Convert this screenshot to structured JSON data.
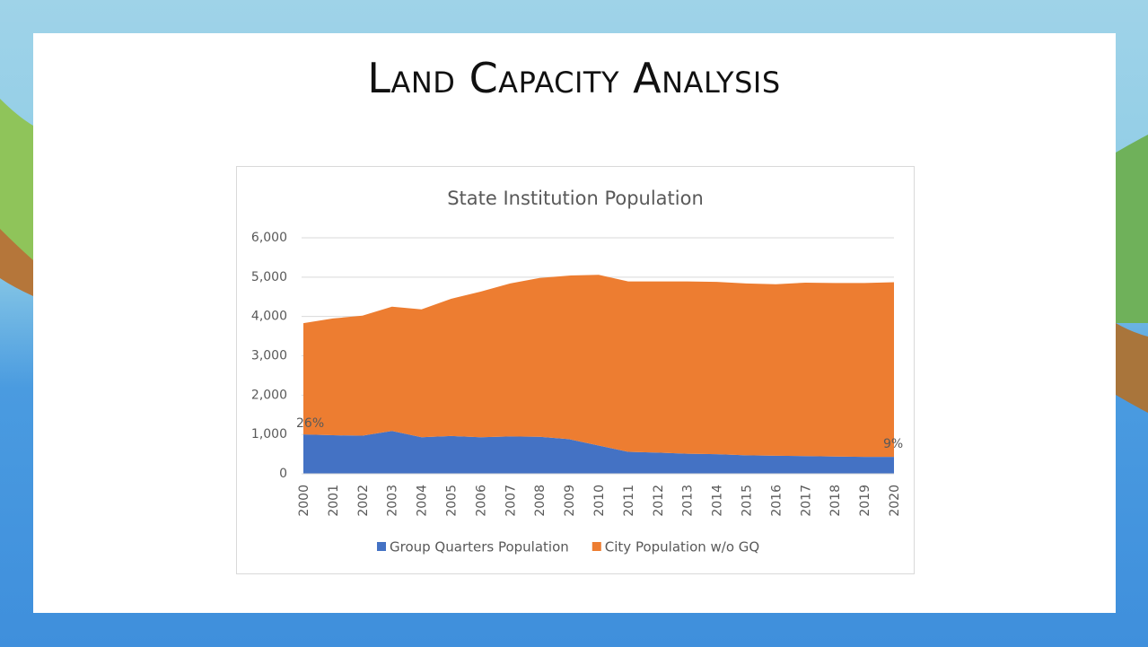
{
  "slide": {
    "title": "Land Capacity Analysis"
  },
  "chart_data": {
    "type": "stacked-area",
    "title": "State Institution Population",
    "categories": [
      "2000",
      "2001",
      "2002",
      "2003",
      "2004",
      "2005",
      "2006",
      "2007",
      "2008",
      "2009",
      "2010",
      "2011",
      "2012",
      "2013",
      "2014",
      "2015",
      "2016",
      "2017",
      "2018",
      "2019",
      "2020"
    ],
    "series": [
      {
        "name": "Group Quarters Population",
        "color": "#4472c4",
        "values": [
          1000,
          980,
          970,
          1090,
          930,
          960,
          930,
          950,
          940,
          880,
          720,
          560,
          540,
          510,
          500,
          470,
          460,
          450,
          440,
          430,
          430
        ]
      },
      {
        "name": "City Population w/o GQ",
        "color": "#ed7d31",
        "values": [
          2830,
          2970,
          3050,
          3160,
          3250,
          3490,
          3700,
          3890,
          4040,
          4160,
          4340,
          4330,
          4350,
          4380,
          4380,
          4370,
          4360,
          4410,
          4410,
          4420,
          4440
        ]
      }
    ],
    "annotations": [
      "26%",
      "9%"
    ],
    "ylim": [
      0,
      6000
    ],
    "yticks": [
      0,
      {
        "value": 1000,
        "label": "1,000"
      },
      {
        "value": 2000,
        "label": "2,000"
      },
      {
        "value": 3000,
        "label": "3,000"
      },
      {
        "value": 4000,
        "label": "4,000"
      },
      {
        "value": 5000,
        "label": "5,000"
      },
      {
        "value": 6000,
        "label": "6,000"
      }
    ],
    "grid": true,
    "legend": "bottom"
  }
}
